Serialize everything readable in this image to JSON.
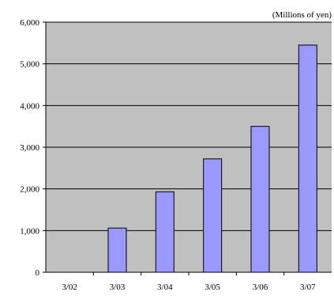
{
  "colors": {
    "plot_background": "#c0c0c0",
    "bar_fill": "#9999ff",
    "bar_stroke": "#000000",
    "gridline": "#000000"
  },
  "chart_data": {
    "type": "bar",
    "unit_label": "(Millions of yen)",
    "categories": [
      "3/02",
      "3/03",
      "3/04",
      "3/05",
      "3/06",
      "3/07"
    ],
    "values": [
      0,
      1060,
      1930,
      2720,
      3500,
      5450
    ],
    "ylim": [
      0,
      6000
    ],
    "yticks": [
      0,
      1000,
      2000,
      3000,
      4000,
      5000,
      6000
    ],
    "ytick_labels": [
      "0",
      "1,000",
      "2,000",
      "3,000",
      "4,000",
      "5,000",
      "6,000"
    ],
    "grid": true,
    "legend": "none"
  }
}
